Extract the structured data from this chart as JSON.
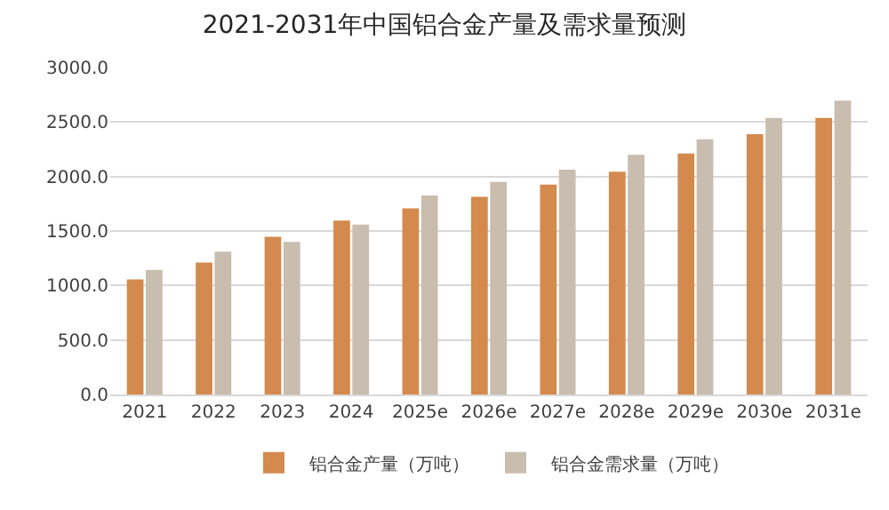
{
  "chart_data": {
    "type": "bar",
    "title": "2021-2031年中国铝合金产量及需求量预测",
    "categories": [
      "2021",
      "2022",
      "2023",
      "2024",
      "2025e",
      "2026e",
      "2027e",
      "2028e",
      "2029e",
      "2030e",
      "2031e"
    ],
    "series": [
      {
        "name": "铝合金产量（万吨）",
        "color": "#d48a4e",
        "values": [
          1055,
          1210,
          1446,
          1595,
          1707,
          1814,
          1926,
          2045,
          2211,
          2389,
          2537
        ]
      },
      {
        "name": "铝合金需求量（万吨）",
        "color": "#c9bdb0",
        "values": [
          1144,
          1310,
          1400,
          1560,
          1826,
          1950,
          2063,
          2199,
          2341,
          2537,
          2697
        ]
      }
    ],
    "ylim": [
      0,
      3000
    ],
    "yticks": [
      {
        "value": 0,
        "label": "0.0"
      },
      {
        "value": 500,
        "label": "500.0"
      },
      {
        "value": 1000,
        "label": "1000.0"
      },
      {
        "value": 1500,
        "label": "1500.0"
      },
      {
        "value": 2000,
        "label": "2000.0"
      },
      {
        "value": 2500,
        "label": "2500.0"
      },
      {
        "value": 3000,
        "label": "3000.0"
      }
    ],
    "grid": "y",
    "legend": "bottom"
  }
}
